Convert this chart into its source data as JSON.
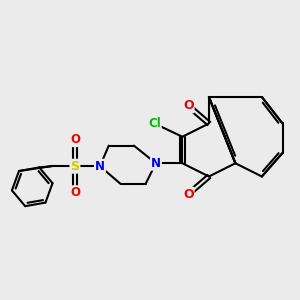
{
  "background_color": "#ebebeb",
  "atom_colors": {
    "C": "#000000",
    "N": "#0000ee",
    "O": "#ee0000",
    "S": "#cccc00",
    "Cl": "#00bb00"
  },
  "bond_color": "#000000",
  "bond_width": 1.5,
  "figsize": [
    3.0,
    3.0
  ],
  "dpi": 100
}
